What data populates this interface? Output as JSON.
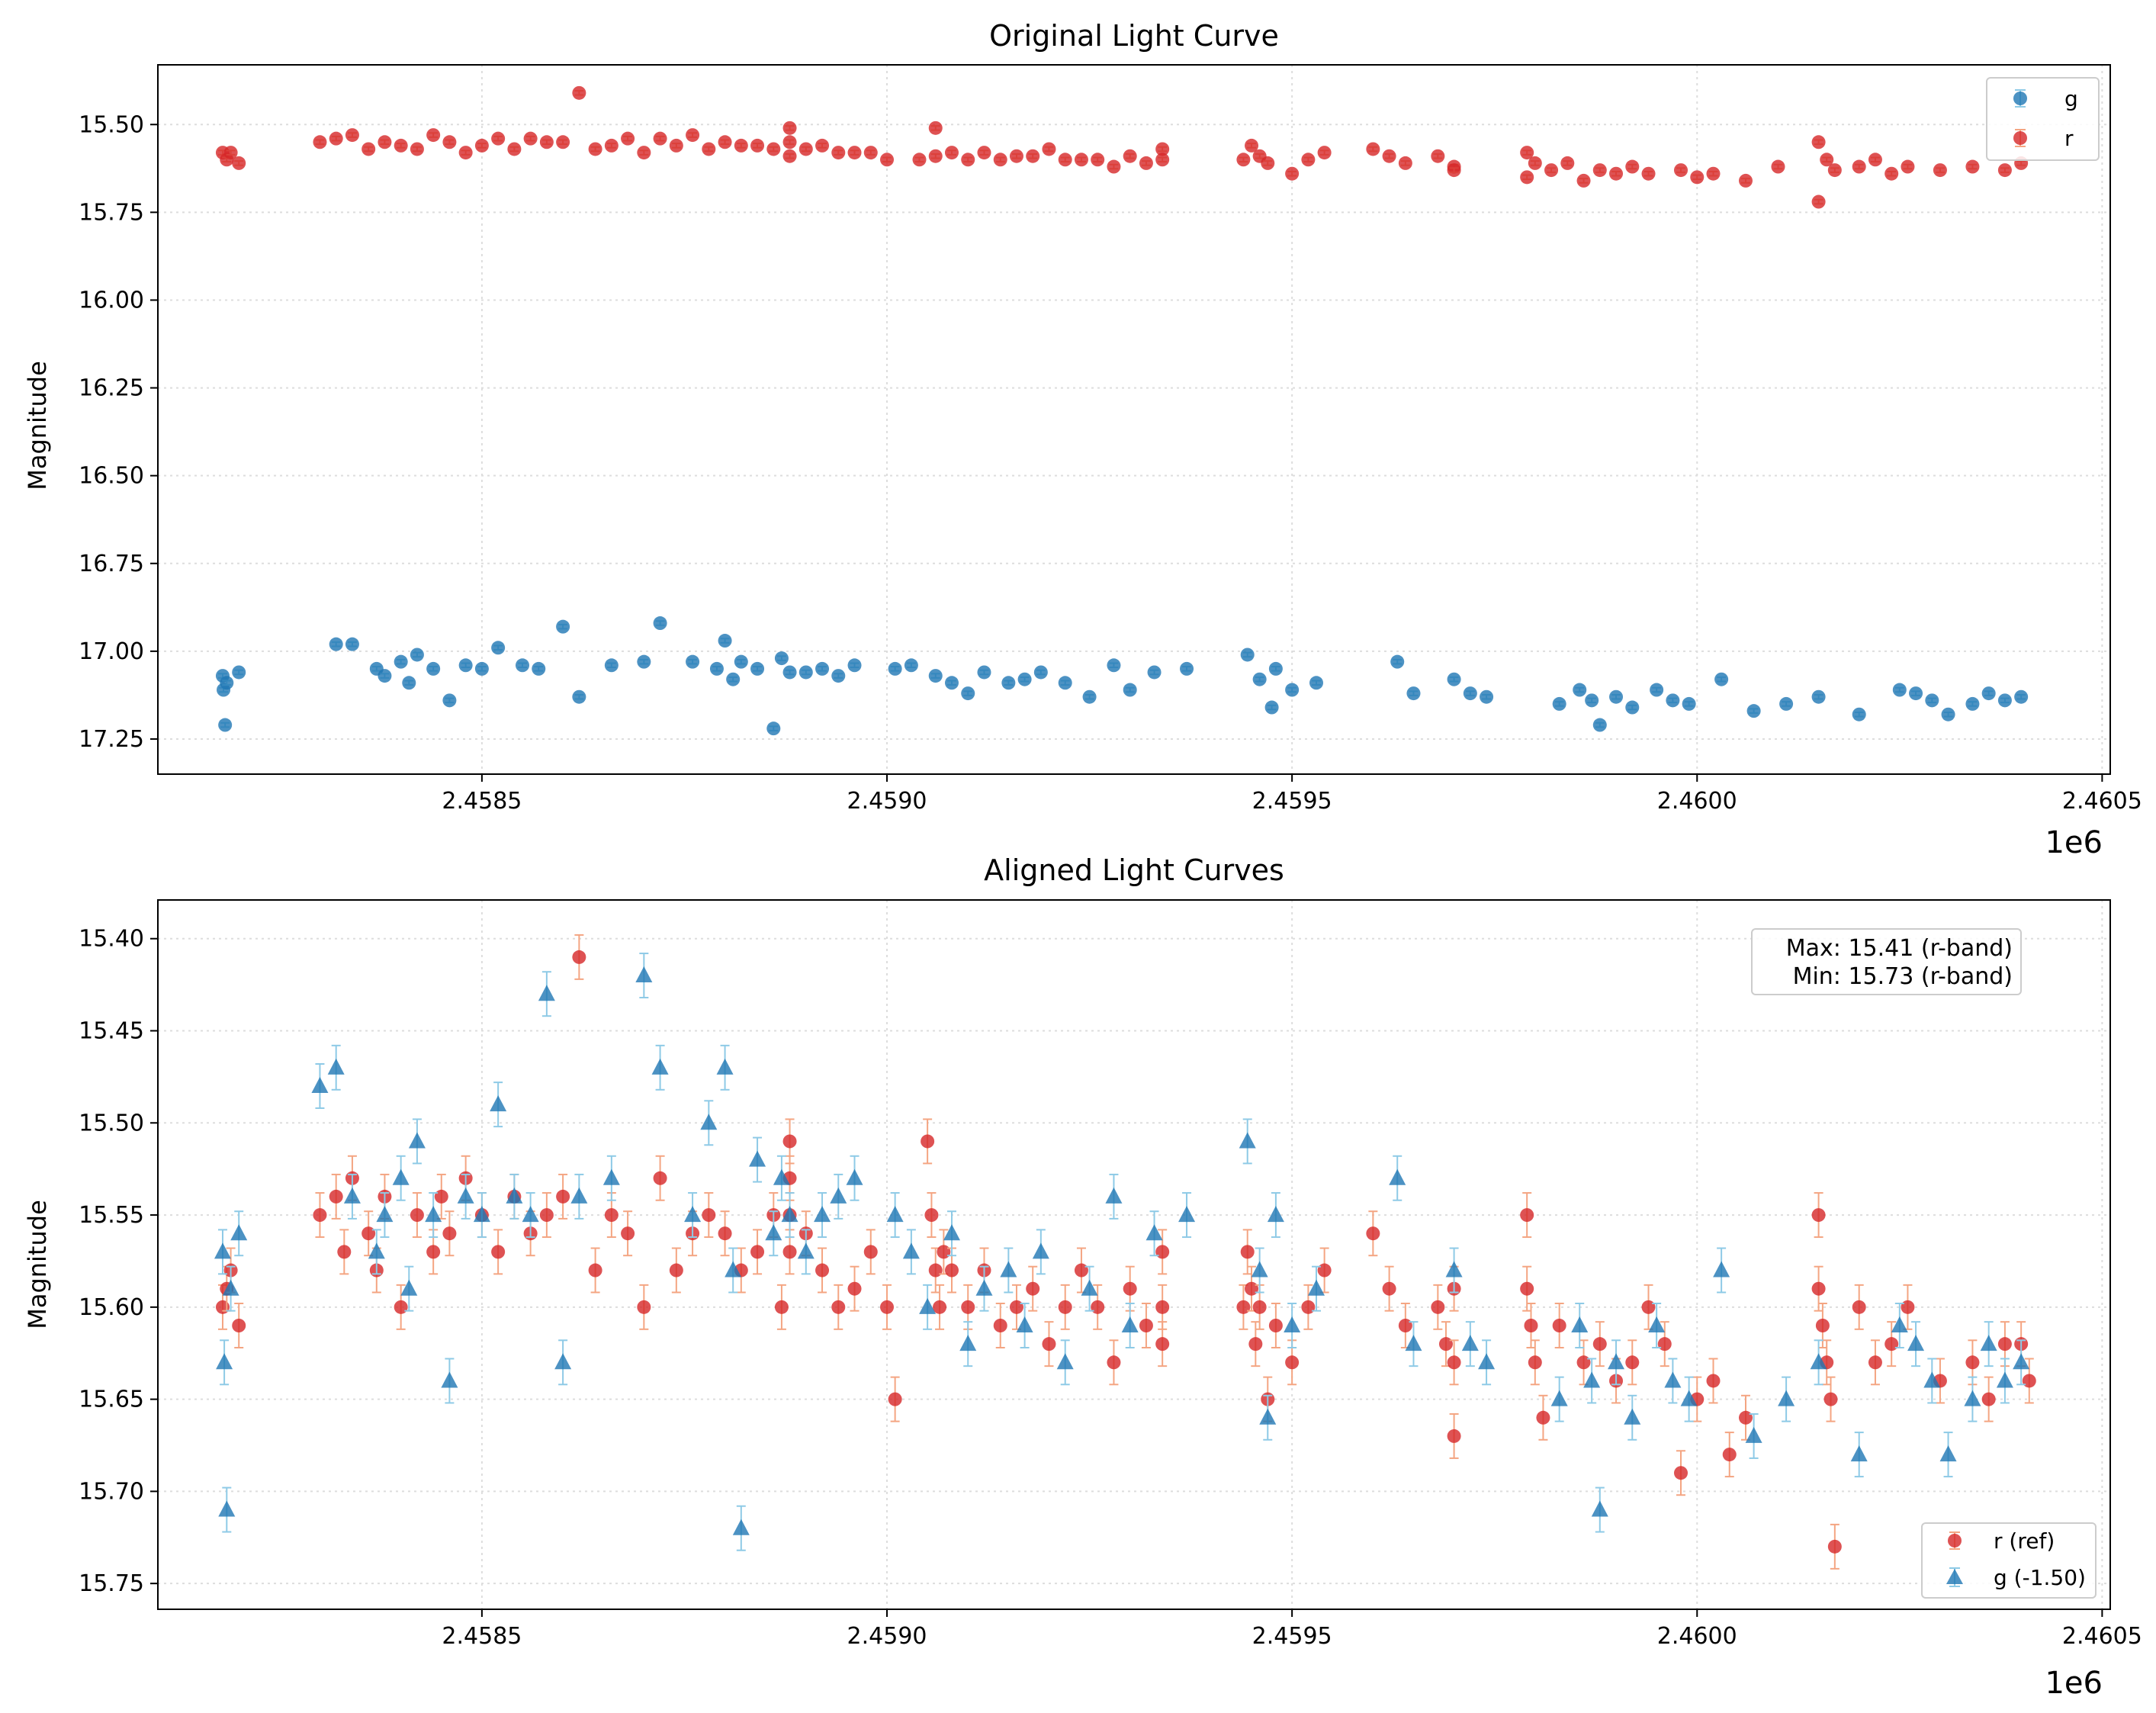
{
  "chart_data": [
    {
      "type": "scatter",
      "title": "Original Light Curve",
      "xlabel": "",
      "ylabel": "Magnitude",
      "x_offset_label": "1e6",
      "xlim": [
        2458100,
        2460510
      ],
      "ylim": [
        17.35,
        15.33
      ],
      "y_inverted": true,
      "x_ticks": [
        2458500,
        2459000,
        2459500,
        2460000,
        2460500
      ],
      "x_tick_labels": [
        "2.4585",
        "2.4590",
        "2.4595",
        "2.4600",
        "2.4605"
      ],
      "y_ticks": [
        15.5,
        15.75,
        16.0,
        16.25,
        16.5,
        16.75,
        17.0,
        17.25
      ],
      "y_tick_labels": [
        "15.50",
        "15.75",
        "16.00",
        "16.25",
        "16.50",
        "16.75",
        "17.00",
        "17.25"
      ],
      "grid": true,
      "legend_position": "top-right",
      "series": [
        {
          "name": "g",
          "marker": "circle",
          "color": "#1f77b4",
          "x": [
            2458180,
            2458181,
            2458183,
            2458185,
            2458200,
            2458320,
            2458340,
            2458370,
            2458380,
            2458400,
            2458410,
            2458420,
            2458440,
            2458460,
            2458480,
            2458500,
            2458520,
            2458550,
            2458570,
            2458600,
            2458620,
            2458660,
            2458700,
            2458720,
            2458760,
            2458790,
            2458800,
            2458810,
            2458820,
            2458840,
            2458860,
            2458870,
            2458880,
            2458900,
            2458920,
            2458940,
            2458960,
            2459010,
            2459030,
            2459060,
            2459080,
            2459100,
            2459120,
            2459150,
            2459170,
            2459190,
            2459220,
            2459250,
            2459280,
            2459300,
            2459330,
            2459370,
            2459445,
            2459460,
            2459475,
            2459480,
            2459500,
            2459530,
            2459630,
            2459650,
            2459700,
            2459720,
            2459740,
            2459830,
            2459855,
            2459870,
            2459880,
            2459900,
            2459920,
            2459950,
            2459970,
            2459990,
            2460030,
            2460070,
            2460110,
            2460150,
            2460200,
            2460250,
            2460270,
            2460290,
            2460310,
            2460340,
            2460360,
            2460380,
            2460400
          ],
          "y": [
            17.07,
            17.11,
            17.21,
            17.09,
            17.06,
            16.98,
            16.98,
            17.05,
            17.07,
            17.03,
            17.09,
            17.01,
            17.05,
            17.14,
            17.04,
            17.05,
            16.99,
            17.04,
            17.05,
            16.93,
            17.13,
            17.04,
            17.03,
            16.92,
            17.03,
            17.05,
            16.97,
            17.08,
            17.03,
            17.05,
            17.22,
            17.02,
            17.06,
            17.06,
            17.05,
            17.07,
            17.04,
            17.05,
            17.04,
            17.07,
            17.09,
            17.12,
            17.06,
            17.09,
            17.08,
            17.06,
            17.09,
            17.13,
            17.04,
            17.11,
            17.06,
            17.05,
            17.01,
            17.08,
            17.16,
            17.05,
            17.11,
            17.09,
            17.03,
            17.12,
            17.08,
            17.12,
            17.13,
            17.15,
            17.11,
            17.14,
            17.21,
            17.13,
            17.16,
            17.11,
            17.14,
            17.15,
            17.08,
            17.17,
            17.15,
            17.13,
            17.18,
            17.11,
            17.12,
            17.14,
            17.18,
            17.15,
            17.12,
            17.14,
            17.13
          ]
        },
        {
          "name": "r",
          "marker": "circle",
          "color": "#d62728",
          "x": [
            2458180,
            2458185,
            2458190,
            2458200,
            2458300,
            2458320,
            2458340,
            2458360,
            2458380,
            2458400,
            2458420,
            2458440,
            2458460,
            2458480,
            2458500,
            2458520,
            2458540,
            2458560,
            2458580,
            2458600,
            2458620,
            2458640,
            2458660,
            2458680,
            2458700,
            2458720,
            2458740,
            2458760,
            2458780,
            2458800,
            2458820,
            2458840,
            2458860,
            2458880,
            2458880,
            2458880,
            2458900,
            2458920,
            2458940,
            2458960,
            2458980,
            2459000,
            2459040,
            2459060,
            2459060,
            2459080,
            2459100,
            2459120,
            2459140,
            2459160,
            2459180,
            2459200,
            2459220,
            2459240,
            2459260,
            2459280,
            2459300,
            2459320,
            2459340,
            2459340,
            2459440,
            2459450,
            2459460,
            2459470,
            2459500,
            2459520,
            2459540,
            2459600,
            2459620,
            2459640,
            2459680,
            2459700,
            2459700,
            2459790,
            2459790,
            2459800,
            2459820,
            2459840,
            2459860,
            2459880,
            2459900,
            2459920,
            2459940,
            2459980,
            2460000,
            2460020,
            2460060,
            2460100,
            2460150,
            2460150,
            2460160,
            2460170,
            2460200,
            2460220,
            2460240,
            2460260,
            2460300,
            2460340,
            2460380,
            2460400
          ],
          "y": [
            15.58,
            15.6,
            15.58,
            15.61,
            15.55,
            15.54,
            15.53,
            15.57,
            15.55,
            15.56,
            15.57,
            15.53,
            15.55,
            15.58,
            15.56,
            15.54,
            15.57,
            15.54,
            15.55,
            15.55,
            15.41,
            15.57,
            15.56,
            15.54,
            15.58,
            15.54,
            15.56,
            15.53,
            15.57,
            15.55,
            15.56,
            15.56,
            15.57,
            15.51,
            15.55,
            15.59,
            15.57,
            15.56,
            15.58,
            15.58,
            15.58,
            15.6,
            15.6,
            15.51,
            15.59,
            15.58,
            15.6,
            15.58,
            15.6,
            15.59,
            15.59,
            15.57,
            15.6,
            15.6,
            15.6,
            15.62,
            15.59,
            15.61,
            15.57,
            15.6,
            15.6,
            15.56,
            15.59,
            15.61,
            15.64,
            15.6,
            15.58,
            15.57,
            15.59,
            15.61,
            15.59,
            15.62,
            15.63,
            15.58,
            15.65,
            15.61,
            15.63,
            15.61,
            15.66,
            15.63,
            15.64,
            15.62,
            15.64,
            15.63,
            15.65,
            15.64,
            15.66,
            15.62,
            15.55,
            15.72,
            15.6,
            15.63,
            15.62,
            15.6,
            15.64,
            15.62,
            15.63,
            15.62,
            15.63,
            15.61
          ]
        }
      ]
    },
    {
      "type": "scatter",
      "title": "Aligned Light Curves",
      "xlabel": "",
      "ylabel": "Magnitude",
      "x_offset_label": "1e6",
      "xlim": [
        2458100,
        2460510
      ],
      "ylim": [
        15.764,
        15.379
      ],
      "y_inverted": true,
      "x_ticks": [
        2458500,
        2459000,
        2459500,
        2460000,
        2460500
      ],
      "x_tick_labels": [
        "2.4585",
        "2.4590",
        "2.4595",
        "2.4600",
        "2.4605"
      ],
      "y_ticks": [
        15.4,
        15.45,
        15.5,
        15.55,
        15.6,
        15.65,
        15.7,
        15.75
      ],
      "y_tick_labels": [
        "15.40",
        "15.45",
        "15.50",
        "15.55",
        "15.60",
        "15.65",
        "15.70",
        "15.75"
      ],
      "grid": true,
      "legend_position": "bottom-right",
      "annotation": [
        "Max: 15.41 (r-band)",
        "Min: 15.73 (r-band)"
      ],
      "error_bar": 0.012,
      "series": [
        {
          "name": "r (ref)",
          "marker": "circle",
          "color": "#d62728",
          "errcolor": "#f4a582",
          "x": [
            2458180,
            2458185,
            2458190,
            2458200,
            2458300,
            2458320,
            2458330,
            2458340,
            2458360,
            2458370,
            2458380,
            2458400,
            2458420,
            2458440,
            2458450,
            2458460,
            2458480,
            2458500,
            2458520,
            2458540,
            2458560,
            2458580,
            2458600,
            2458620,
            2458640,
            2458660,
            2458680,
            2458700,
            2458720,
            2458740,
            2458760,
            2458780,
            2458800,
            2458820,
            2458840,
            2458860,
            2458870,
            2458880,
            2458880,
            2458880,
            2458880,
            2458900,
            2458920,
            2458940,
            2458960,
            2458980,
            2459000,
            2459010,
            2459050,
            2459055,
            2459060,
            2459065,
            2459070,
            2459080,
            2459100,
            2459120,
            2459140,
            2459160,
            2459180,
            2459200,
            2459220,
            2459240,
            2459260,
            2459280,
            2459300,
            2459320,
            2459340,
            2459340,
            2459340,
            2459440,
            2459445,
            2459450,
            2459455,
            2459460,
            2459470,
            2459480,
            2459500,
            2459520,
            2459540,
            2459600,
            2459620,
            2459640,
            2459680,
            2459690,
            2459700,
            2459700,
            2459700,
            2459790,
            2459790,
            2459795,
            2459800,
            2459810,
            2459830,
            2459860,
            2459880,
            2459900,
            2459920,
            2459940,
            2459960,
            2459980,
            2460000,
            2460020,
            2460040,
            2460060,
            2460150,
            2460150,
            2460155,
            2460160,
            2460165,
            2460170,
            2460200,
            2460220,
            2460240,
            2460260,
            2460300,
            2460340,
            2460360,
            2460380,
            2460400,
            2460410
          ],
          "y": [
            15.6,
            15.59,
            15.58,
            15.61,
            15.55,
            15.54,
            15.57,
            15.53,
            15.56,
            15.58,
            15.54,
            15.6,
            15.55,
            15.57,
            15.54,
            15.56,
            15.53,
            15.55,
            15.57,
            15.54,
            15.56,
            15.55,
            15.54,
            15.41,
            15.58,
            15.55,
            15.56,
            15.6,
            15.53,
            15.58,
            15.56,
            15.55,
            15.56,
            15.58,
            15.57,
            15.55,
            15.6,
            15.51,
            15.53,
            15.55,
            15.57,
            15.56,
            15.58,
            15.6,
            15.59,
            15.57,
            15.6,
            15.65,
            15.51,
            15.55,
            15.58,
            15.6,
            15.57,
            15.58,
            15.6,
            15.58,
            15.61,
            15.6,
            15.59,
            15.62,
            15.6,
            15.58,
            15.6,
            15.63,
            15.59,
            15.61,
            15.57,
            15.6,
            15.62,
            15.6,
            15.57,
            15.59,
            15.62,
            15.6,
            15.65,
            15.61,
            15.63,
            15.6,
            15.58,
            15.56,
            15.59,
            15.61,
            15.6,
            15.62,
            15.63,
            15.59,
            15.67,
            15.55,
            15.59,
            15.61,
            15.63,
            15.66,
            15.61,
            15.63,
            15.62,
            15.64,
            15.63,
            15.6,
            15.62,
            15.69,
            15.65,
            15.64,
            15.68,
            15.66,
            15.55,
            15.59,
            15.61,
            15.63,
            15.65,
            15.73,
            15.6,
            15.63,
            15.62,
            15.6,
            15.64,
            15.63,
            15.65,
            15.62,
            15.62,
            15.64
          ]
        },
        {
          "name": "g (-1.50)",
          "marker": "triangle",
          "color": "#1f77b4",
          "errcolor": "#8ecae6",
          "x": [
            2458180,
            2458182,
            2458185,
            2458190,
            2458200,
            2458300,
            2458320,
            2458340,
            2458370,
            2458380,
            2458400,
            2458410,
            2458420,
            2458440,
            2458460,
            2458480,
            2458500,
            2458520,
            2458540,
            2458560,
            2458580,
            2458600,
            2458620,
            2458660,
            2458700,
            2458720,
            2458760,
            2458780,
            2458800,
            2458810,
            2458820,
            2458840,
            2458860,
            2458870,
            2458880,
            2458900,
            2458920,
            2458940,
            2458960,
            2459010,
            2459030,
            2459050,
            2459080,
            2459100,
            2459120,
            2459150,
            2459170,
            2459190,
            2459220,
            2459250,
            2459280,
            2459300,
            2459330,
            2459370,
            2459445,
            2459460,
            2459470,
            2459480,
            2459500,
            2459530,
            2459630,
            2459650,
            2459700,
            2459720,
            2459740,
            2459830,
            2459855,
            2459870,
            2459880,
            2459900,
            2459920,
            2459950,
            2459970,
            2459990,
            2460030,
            2460070,
            2460110,
            2460150,
            2460200,
            2460250,
            2460270,
            2460290,
            2460310,
            2460340,
            2460360,
            2460380,
            2460400
          ],
          "y": [
            15.57,
            15.63,
            15.71,
            15.59,
            15.56,
            15.48,
            15.47,
            15.54,
            15.57,
            15.55,
            15.53,
            15.59,
            15.51,
            15.55,
            15.64,
            15.54,
            15.55,
            15.49,
            15.54,
            15.55,
            15.43,
            15.63,
            15.54,
            15.53,
            15.42,
            15.47,
            15.55,
            15.5,
            15.47,
            15.58,
            15.72,
            15.52,
            15.56,
            15.53,
            15.55,
            15.57,
            15.55,
            15.54,
            15.53,
            15.55,
            15.57,
            15.6,
            15.56,
            15.62,
            15.59,
            15.58,
            15.61,
            15.57,
            15.63,
            15.59,
            15.54,
            15.61,
            15.56,
            15.55,
            15.51,
            15.58,
            15.66,
            15.55,
            15.61,
            15.59,
            15.53,
            15.62,
            15.58,
            15.62,
            15.63,
            15.65,
            15.61,
            15.64,
            15.71,
            15.63,
            15.66,
            15.61,
            15.64,
            15.65,
            15.58,
            15.67,
            15.65,
            15.63,
            15.68,
            15.61,
            15.62,
            15.64,
            15.68,
            15.65,
            15.62,
            15.64,
            15.63
          ]
        }
      ]
    }
  ]
}
